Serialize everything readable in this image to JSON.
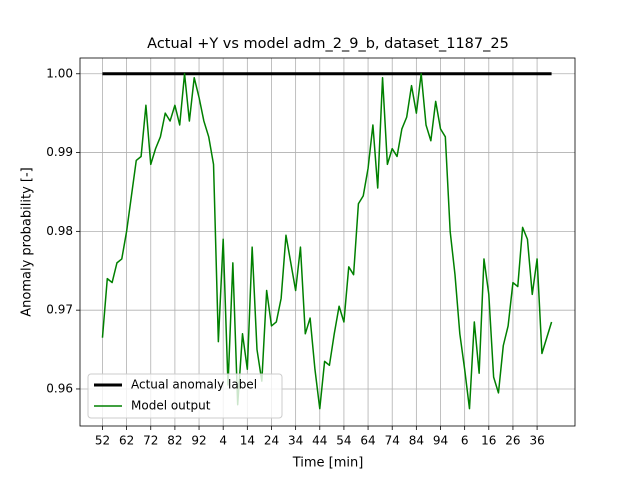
{
  "chart_data": {
    "type": "line",
    "title": "Actual +Y vs model adm_2_9_b, dataset_1187_25",
    "xlabel": "Time [min]",
    "ylabel": "Anomaly probability [-]",
    "xlim": [
      -9.3,
      195.7
    ],
    "ylim": [
      0.9553,
      1.002
    ],
    "xticks": [
      {
        "value": 0,
        "label": "52"
      },
      {
        "value": 10,
        "label": "62"
      },
      {
        "value": 20,
        "label": "72"
      },
      {
        "value": 30,
        "label": "82"
      },
      {
        "value": 40,
        "label": "92"
      },
      {
        "value": 50,
        "label": "4"
      },
      {
        "value": 60,
        "label": "14"
      },
      {
        "value": 70,
        "label": "24"
      },
      {
        "value": 80,
        "label": "34"
      },
      {
        "value": 90,
        "label": "44"
      },
      {
        "value": 100,
        "label": "54"
      },
      {
        "value": 110,
        "label": "64"
      },
      {
        "value": 120,
        "label": "74"
      },
      {
        "value": 130,
        "label": "84"
      },
      {
        "value": 140,
        "label": "94"
      },
      {
        "value": 150,
        "label": "6"
      },
      {
        "value": 160,
        "label": "16"
      },
      {
        "value": 170,
        "label": "26"
      },
      {
        "value": 180,
        "label": "36"
      }
    ],
    "yticks": [
      0.96,
      0.97,
      0.98,
      0.99,
      {
        "value": 1.0,
        "label": "1.00"
      }
    ],
    "grid": true,
    "legend": "lower left",
    "series": [
      {
        "name": "Actual anomaly label",
        "color": "#000000",
        "x": [
          0,
          186
        ],
        "values": [
          1.0,
          1.0
        ]
      },
      {
        "name": "Model output",
        "color": "#008000",
        "x": [
          0,
          2,
          4,
          6,
          8,
          10,
          12,
          14,
          16,
          18,
          20,
          22,
          24,
          26,
          28,
          30,
          32,
          34,
          36,
          38,
          40,
          42,
          44,
          46,
          48,
          50,
          52,
          54,
          56,
          58,
          60,
          62,
          64,
          66,
          68,
          70,
          72,
          74,
          76,
          78,
          80,
          82,
          84,
          86,
          88,
          90,
          92,
          94,
          96,
          98,
          100,
          102,
          104,
          106,
          108,
          110,
          112,
          114,
          116,
          118,
          120,
          122,
          124,
          126,
          128,
          130,
          132,
          134,
          136,
          138,
          140,
          142,
          144,
          146,
          148,
          150,
          152,
          154,
          156,
          158,
          160,
          162,
          164,
          166,
          168,
          170,
          172,
          174,
          176,
          178,
          180,
          182,
          184,
          186
        ],
        "values": [
          0.9665,
          0.974,
          0.9735,
          0.976,
          0.9765,
          0.98,
          0.9845,
          0.989,
          0.9895,
          0.996,
          0.9885,
          0.9905,
          0.992,
          0.995,
          0.994,
          0.996,
          0.9935,
          1.0,
          0.994,
          0.9995,
          0.997,
          0.994,
          0.992,
          0.9885,
          0.966,
          0.979,
          0.9605,
          0.976,
          0.958,
          0.967,
          0.9625,
          0.978,
          0.965,
          0.961,
          0.9725,
          0.968,
          0.9685,
          0.9715,
          0.9795,
          0.976,
          0.9725,
          0.978,
          0.967,
          0.969,
          0.9625,
          0.9575,
          0.9635,
          0.963,
          0.967,
          0.9705,
          0.9685,
          0.9755,
          0.9745,
          0.9835,
          0.9845,
          0.988,
          0.9935,
          0.9855,
          0.9995,
          0.9885,
          0.9905,
          0.9895,
          0.993,
          0.9945,
          0.9985,
          0.995,
          1.0,
          0.9935,
          0.9915,
          0.9965,
          0.993,
          0.992,
          0.98,
          0.9745,
          0.967,
          0.9625,
          0.9575,
          0.9685,
          0.962,
          0.9765,
          0.972,
          0.9615,
          0.9595,
          0.9655,
          0.968,
          0.9735,
          0.973,
          0.9805,
          0.979,
          0.972,
          0.9765,
          0.9645,
          0.9665,
          0.9685
        ]
      }
    ]
  }
}
